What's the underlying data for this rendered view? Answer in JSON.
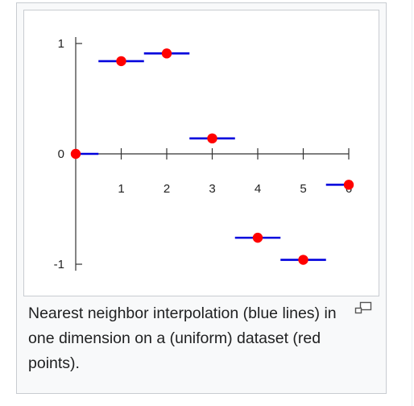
{
  "caption": {
    "text": "Nearest neighbor interpolation (blue lines) in one dimension on a (uniform) dataset (red points).",
    "enlarge_icon": "magnify-clip-icon"
  },
  "chart_data": {
    "type": "scatter",
    "x": [
      0,
      1,
      2,
      3,
      4,
      5,
      6
    ],
    "values": [
      0,
      0.84,
      0.91,
      0.14,
      -0.76,
      -0.96,
      -0.28
    ],
    "xlim": [
      0,
      6
    ],
    "ylim": [
      -1,
      1
    ],
    "xticks": [
      "1",
      "2",
      "3",
      "4",
      "5",
      "6"
    ],
    "yticks": [
      "1",
      "0",
      "-1"
    ],
    "point_color": "#ff0000",
    "line_color": "#0000dd",
    "axis_color": "#333333",
    "grid": false
  }
}
